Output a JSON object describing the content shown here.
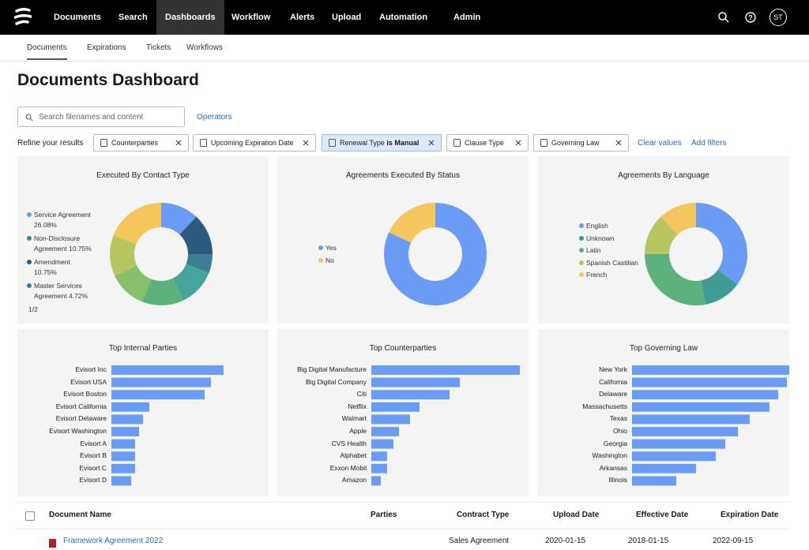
{
  "nav": {
    "items": [
      "Documents",
      "Search",
      "Dashboards",
      "Workflow",
      "Alerts",
      "Upload",
      "Automation",
      "Admin"
    ],
    "avatar": "ST"
  },
  "tabs": [
    "Documents",
    "Expirations",
    "Tickets",
    "Workflows"
  ],
  "page_title": "Documents Dashboard",
  "search": {
    "placeholder": "Search filenames and content",
    "operators": "Operators"
  },
  "filters": {
    "label": "Refine your results",
    "chips": [
      {
        "text": "Counterparties"
      },
      {
        "text": "Upcoming Expiration Date"
      },
      {
        "text": "Renewal Type",
        "bold": "is Manual"
      },
      {
        "text": "Clause Type"
      },
      {
        "text": "Governing Law"
      }
    ],
    "clear": "Clear values",
    "add": "Add filters"
  },
  "chart_data": [
    {
      "type": "donut",
      "title": "Executed By Contact Type",
      "values": [
        12,
        13,
        6,
        12,
        13,
        12,
        13,
        19
      ],
      "colors": [
        "#6b9cf5",
        "#2d5b7d",
        "#3b7f95",
        "#45a59a",
        "#5cb27a",
        "#86c06a",
        "#b9c65f",
        "#f5c65b"
      ],
      "legend_items": [
        {
          "name": "Service Agreement",
          "label": "26.08%",
          "color": "#6b9cf5"
        },
        {
          "name": "Non-Disclosure Agreement",
          "label": "10.75%",
          "color": "#3b8c8c"
        },
        {
          "name": "Amendment",
          "label": "10.75%",
          "color": "#2d5b7d"
        },
        {
          "name": "Master Services Agreement",
          "label": "4.72%",
          "color": "#3b7f95"
        }
      ],
      "pager": "1/2"
    },
    {
      "type": "donut",
      "title": "Agreements Executed By Status",
      "categories": [
        "Yes",
        "No"
      ],
      "values": [
        82,
        18
      ],
      "colors": [
        "#6b9cf5",
        "#f5c65b"
      ]
    },
    {
      "type": "donut",
      "title": "Agreements By Language",
      "categories": [
        "English",
        "Unknown",
        "Latin",
        "Spanish Castilian",
        "French"
      ],
      "values": [
        35,
        12,
        28,
        13,
        12
      ],
      "colors": [
        "#6b9cf5",
        "#3f9b93",
        "#5cb27a",
        "#b9c65f",
        "#f5c65b"
      ]
    },
    {
      "type": "hbar",
      "title": "Top Internal Parties",
      "color": "#6b9cf5",
      "categories": [
        "Evisort Inc",
        "Evisort USA",
        "Evisort Boston",
        "Evisort California",
        "Evisort Delaware",
        "Evisort Washington",
        "Evisort A",
        "Evisort B",
        "Evisort C",
        "Evisort D"
      ],
      "values": [
        142,
        126,
        118,
        48,
        40,
        35,
        30,
        30,
        30,
        25
      ]
    },
    {
      "type": "hbar",
      "title": "Top Counterparties",
      "color": "#6b9cf5",
      "categories": [
        "Big Digital Manufacture",
        "Big Digital Company",
        "Citi",
        "Netflix",
        "Walmart",
        "Apple",
        "CVS Health",
        "Alphabet",
        "Exxon Mobil",
        "Amazon"
      ],
      "values": [
        188,
        112,
        99,
        61,
        49,
        35,
        28,
        20,
        20,
        12
      ]
    },
    {
      "type": "hbar",
      "title": "Top Governing Law",
      "color": "#6b9cf5",
      "categories": [
        "New York",
        "California",
        "Delaware",
        "Massachusetts",
        "Texas",
        "Ohio",
        "Georgia",
        "Washington",
        "Arkansas",
        "Illinois"
      ],
      "values": [
        199,
        196,
        185,
        174,
        149,
        134,
        118,
        106,
        81,
        56
      ]
    }
  ],
  "table": {
    "headers": [
      "Document Name",
      "Parties",
      "Contract Type",
      "Upload Date",
      "Effective Date",
      "Expiration Date"
    ],
    "rows": [
      [
        "Framework Agreement 2022",
        "",
        "Sales Agreement",
        "2020-01-15",
        "2018-01-15",
        "2022-09-15"
      ]
    ]
  }
}
